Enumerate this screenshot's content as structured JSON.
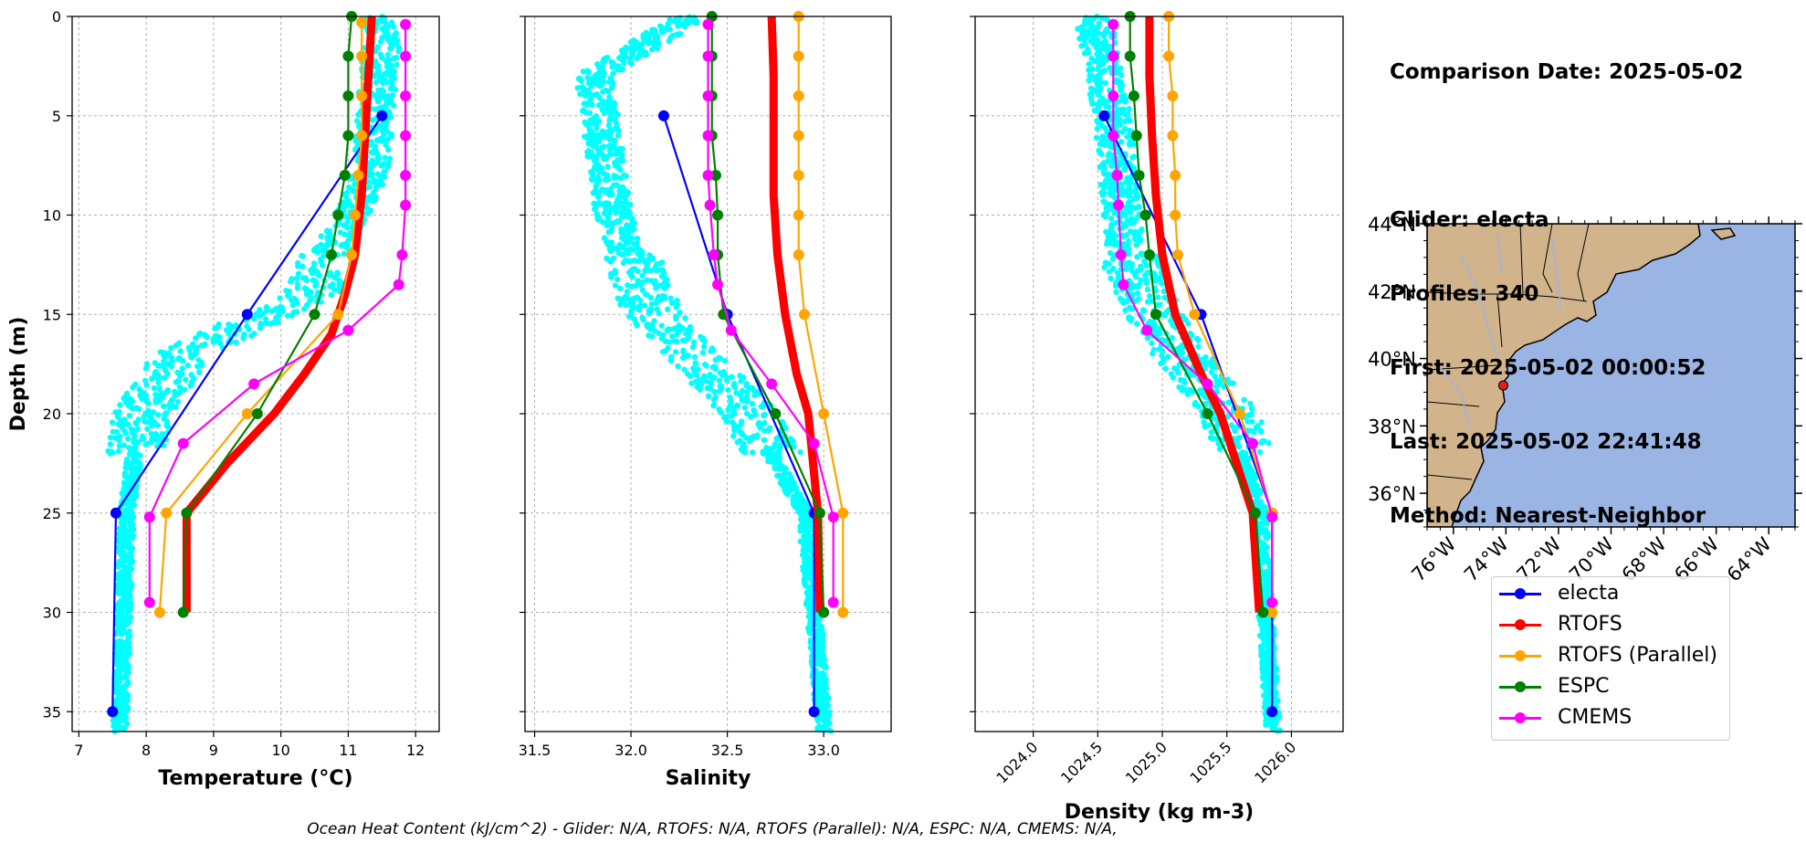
{
  "info": {
    "lines": [
      "Comparison Date: 2025-05-02",
      "",
      "Glider: electa",
      "Profiles: 340",
      "First: 2025-05-02 00:00:52",
      "Last: 2025-05-02 22:41:48",
      "Method: Nearest-Neighbor"
    ]
  },
  "footer": "Ocean Heat Content (kJ/cm^2) - Glider: N/A,  RTOFS: N/A,  RTOFS (Parallel): N/A,  ESPC: N/A,  CMEMS: N/A,",
  "legend": [
    {
      "name": "electa",
      "color": "#0000ff"
    },
    {
      "name": "RTOFS",
      "color": "#ff0000"
    },
    {
      "name": "RTOFS (Parallel)",
      "color": "#ffa500"
    },
    {
      "name": "ESPC",
      "color": "#008000"
    },
    {
      "name": "CMEMS",
      "color": "#ff00ff"
    }
  ],
  "colors": {
    "glider_scatter": "#00ffff",
    "electa": "#0000ff",
    "RTOFS": "#ff0000",
    "RTOFS (Parallel)": "#ffa500",
    "ESPC": "#008000",
    "CMEMS": "#ff00ff",
    "land": "#d2b48c",
    "ocean": "#9ab5e3"
  },
  "chart_data": [
    {
      "type": "line",
      "xlabel": "Temperature (°C)",
      "ylabel": "Depth (m)",
      "xlim": [
        6.9,
        12.35
      ],
      "ylim": [
        36,
        0
      ],
      "xticks": [
        "7",
        "8",
        "9",
        "10",
        "11",
        "12"
      ],
      "yticks": [
        "0",
        "5",
        "10",
        "15",
        "20",
        "25",
        "30",
        "35"
      ],
      "grid": true,
      "glider_scatter_envelope": [
        [
          11.5,
          0
        ],
        [
          11.3,
          8
        ],
        [
          10.4,
          14
        ],
        [
          8.5,
          17
        ],
        [
          7.9,
          20
        ],
        [
          7.7,
          25
        ],
        [
          7.6,
          36
        ]
      ],
      "series": [
        {
          "name": "electa",
          "points": [
            [
              11.5,
              5
            ],
            [
              9.5,
              15
            ],
            [
              7.55,
              25
            ],
            [
              7.5,
              35
            ]
          ]
        },
        {
          "name": "RTOFS",
          "points": [
            [
              11.35,
              0
            ],
            [
              11.3,
              3
            ],
            [
              11.25,
              6
            ],
            [
              11.2,
              9
            ],
            [
              11.1,
              12
            ],
            [
              10.95,
              14
            ],
            [
              10.75,
              16
            ],
            [
              10.35,
              18
            ],
            [
              9.9,
              20
            ],
            [
              9.2,
              22.5
            ],
            [
              8.6,
              25
            ],
            [
              8.6,
              30
            ]
          ]
        },
        {
          "name": "RTOFS (Parallel)",
          "points": [
            [
              11.2,
              0.3
            ],
            [
              11.2,
              2
            ],
            [
              11.2,
              4
            ],
            [
              11.2,
              6
            ],
            [
              11.15,
              8
            ],
            [
              11.1,
              10
            ],
            [
              11.05,
              12
            ],
            [
              10.85,
              15
            ],
            [
              9.5,
              20
            ],
            [
              8.3,
              25
            ],
            [
              8.2,
              30
            ]
          ]
        },
        {
          "name": "ESPC",
          "points": [
            [
              11.05,
              0
            ],
            [
              11.0,
              2
            ],
            [
              11.0,
              4
            ],
            [
              11.0,
              6
            ],
            [
              10.95,
              8
            ],
            [
              10.85,
              10
            ],
            [
              10.75,
              12
            ],
            [
              10.5,
              15
            ],
            [
              9.65,
              20
            ],
            [
              8.6,
              25
            ],
            [
              8.55,
              30
            ]
          ]
        },
        {
          "name": "CMEMS",
          "points": [
            [
              11.85,
              0.4
            ],
            [
              11.85,
              2
            ],
            [
              11.85,
              4
            ],
            [
              11.85,
              6
            ],
            [
              11.85,
              8
            ],
            [
              11.85,
              9.5
            ],
            [
              11.8,
              12
            ],
            [
              11.75,
              13.5
            ],
            [
              11.0,
              15.8
            ],
            [
              9.6,
              18.5
            ],
            [
              8.55,
              21.5
            ],
            [
              8.05,
              25.2
            ],
            [
              8.05,
              29.5
            ]
          ]
        }
      ]
    },
    {
      "type": "line",
      "xlabel": "Salinity",
      "xlim": [
        31.45,
        33.35
      ],
      "ylim": [
        36,
        0
      ],
      "xticks": [
        "31.5",
        "32.0",
        "32.5",
        "33.0"
      ],
      "grid": true,
      "glider_scatter_envelope": [
        [
          32.3,
          0
        ],
        [
          31.8,
          3
        ],
        [
          31.9,
          10
        ],
        [
          32.1,
          15
        ],
        [
          32.6,
          20
        ],
        [
          32.9,
          25
        ],
        [
          33.0,
          36
        ]
      ],
      "series": [
        {
          "name": "electa",
          "points": [
            [
              32.17,
              5
            ],
            [
              32.5,
              15
            ],
            [
              32.95,
              25
            ],
            [
              32.95,
              35
            ]
          ]
        },
        {
          "name": "RTOFS",
          "points": [
            [
              32.73,
              0
            ],
            [
              32.74,
              3
            ],
            [
              32.74,
              6
            ],
            [
              32.74,
              9
            ],
            [
              32.76,
              12
            ],
            [
              32.8,
              15
            ],
            [
              32.86,
              18
            ],
            [
              32.92,
              20
            ],
            [
              32.97,
              25
            ],
            [
              32.98,
              30
            ]
          ]
        },
        {
          "name": "RTOFS (Parallel)",
          "points": [
            [
              32.87,
              0
            ],
            [
              32.87,
              2
            ],
            [
              32.87,
              4
            ],
            [
              32.87,
              6
            ],
            [
              32.87,
              8
            ],
            [
              32.87,
              10
            ],
            [
              32.87,
              12
            ],
            [
              32.9,
              15
            ],
            [
              33.0,
              20
            ],
            [
              33.1,
              25
            ],
            [
              33.1,
              30
            ]
          ]
        },
        {
          "name": "ESPC",
          "points": [
            [
              32.42,
              0
            ],
            [
              32.42,
              2
            ],
            [
              32.42,
              4
            ],
            [
              32.42,
              6
            ],
            [
              32.44,
              8
            ],
            [
              32.45,
              10
            ],
            [
              32.45,
              12
            ],
            [
              32.48,
              15
            ],
            [
              32.75,
              20
            ],
            [
              32.98,
              25
            ],
            [
              33.0,
              30
            ]
          ]
        },
        {
          "name": "CMEMS",
          "points": [
            [
              32.4,
              0.4
            ],
            [
              32.4,
              2
            ],
            [
              32.4,
              4
            ],
            [
              32.4,
              6
            ],
            [
              32.4,
              8
            ],
            [
              32.41,
              9.5
            ],
            [
              32.43,
              12
            ],
            [
              32.45,
              13.5
            ],
            [
              32.52,
              15.8
            ],
            [
              32.73,
              18.5
            ],
            [
              32.95,
              21.5
            ],
            [
              33.05,
              25.2
            ],
            [
              33.05,
              29.5
            ]
          ]
        }
      ]
    },
    {
      "type": "line",
      "xlabel": "Density (kg m-3)",
      "xlim": [
        1023.55,
        1026.4
      ],
      "ylim": [
        36,
        0
      ],
      "xticks": [
        "1024.0",
        "1024.5",
        "1025.0",
        "1025.5",
        "1026.0"
      ],
      "grid": true,
      "glider_scatter_envelope": [
        [
          1024.45,
          0
        ],
        [
          1024.6,
          5
        ],
        [
          1024.7,
          12
        ],
        [
          1025.0,
          16
        ],
        [
          1025.5,
          20
        ],
        [
          1025.75,
          25
        ],
        [
          1025.85,
          36
        ]
      ],
      "series": [
        {
          "name": "electa",
          "points": [
            [
              1024.55,
              5
            ],
            [
              1025.3,
              15
            ],
            [
              1025.85,
              25
            ],
            [
              1025.85,
              35
            ]
          ]
        },
        {
          "name": "RTOFS",
          "points": [
            [
              1024.9,
              0
            ],
            [
              1024.9,
              3
            ],
            [
              1024.92,
              6
            ],
            [
              1024.95,
              9
            ],
            [
              1025.0,
              12
            ],
            [
              1025.1,
              15
            ],
            [
              1025.3,
              18
            ],
            [
              1025.45,
              20
            ],
            [
              1025.7,
              25
            ],
            [
              1025.75,
              30
            ]
          ]
        },
        {
          "name": "RTOFS (Parallel)",
          "points": [
            [
              1025.05,
              0
            ],
            [
              1025.05,
              2
            ],
            [
              1025.08,
              4
            ],
            [
              1025.08,
              6
            ],
            [
              1025.1,
              8
            ],
            [
              1025.1,
              10
            ],
            [
              1025.12,
              12
            ],
            [
              1025.25,
              15
            ],
            [
              1025.6,
              20
            ],
            [
              1025.85,
              25
            ],
            [
              1025.85,
              30
            ]
          ]
        },
        {
          "name": "ESPC",
          "points": [
            [
              1024.75,
              0
            ],
            [
              1024.75,
              2
            ],
            [
              1024.78,
              4
            ],
            [
              1024.8,
              6
            ],
            [
              1024.82,
              8
            ],
            [
              1024.87,
              10
            ],
            [
              1024.9,
              12
            ],
            [
              1024.95,
              15
            ],
            [
              1025.35,
              20
            ],
            [
              1025.72,
              25
            ],
            [
              1025.78,
              30
            ]
          ]
        },
        {
          "name": "CMEMS",
          "points": [
            [
              1024.62,
              0.4
            ],
            [
              1024.62,
              2
            ],
            [
              1024.62,
              4
            ],
            [
              1024.62,
              6
            ],
            [
              1024.65,
              8
            ],
            [
              1024.66,
              9.5
            ],
            [
              1024.68,
              12
            ],
            [
              1024.7,
              13.5
            ],
            [
              1024.88,
              15.8
            ],
            [
              1025.35,
              18.5
            ],
            [
              1025.7,
              21.5
            ],
            [
              1025.85,
              25.2
            ],
            [
              1025.85,
              29.5
            ]
          ]
        }
      ]
    }
  ],
  "map": {
    "lat_ticks": [
      "44°N",
      "42°N",
      "40°N",
      "38°N",
      "36°N"
    ],
    "lon_ticks": [
      "76°W",
      "74°W",
      "72°W",
      "70°W",
      "68°W",
      "66°W",
      "64°W"
    ],
    "lat_range": [
      35,
      44
    ],
    "lon_range": [
      -77,
      -63
    ],
    "glider_position": {
      "lat": 39.2,
      "lon": -74.1
    }
  }
}
